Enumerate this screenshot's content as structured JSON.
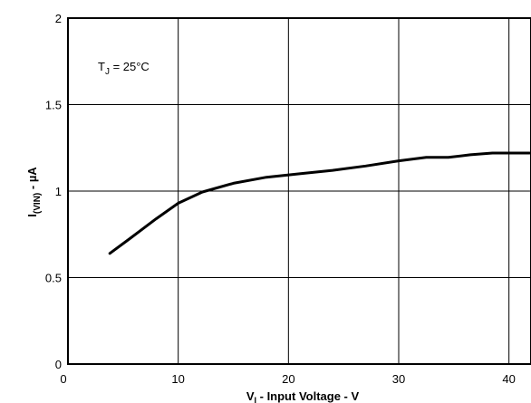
{
  "chart_data": {
    "type": "line",
    "xlabel": "V₁ - Input Voltage - V",
    "ylabel": "I(VIN) - µA",
    "xlim": [
      0,
      42
    ],
    "ylim": [
      0,
      2
    ],
    "x_ticks": [
      0,
      10,
      20,
      30,
      40
    ],
    "y_ticks": [
      0,
      0.5,
      1,
      1.5,
      2
    ],
    "x_tick_labels": [
      "0",
      "10",
      "20",
      "30",
      "40"
    ],
    "y_tick_labels": [
      "0",
      "0.5",
      "1",
      "1.5",
      "2"
    ],
    "grid": true,
    "annotation": "TJ = 25°C",
    "series": [
      {
        "x": [
          3.8,
          5.5,
          8,
          10,
          12.2,
          15,
          18,
          21,
          24,
          27,
          30,
          32.5,
          34.5,
          36.5,
          38.5,
          40.5,
          42
        ],
        "y": [
          0.64,
          0.72,
          0.84,
          0.93,
          0.995,
          1.045,
          1.08,
          1.1,
          1.12,
          1.145,
          1.175,
          1.195,
          1.195,
          1.21,
          1.22,
          1.22,
          1.22
        ]
      }
    ]
  },
  "text": {
    "xlabel_main": "V",
    "xlabel_sub": "I",
    "xlabel_rest": " - Input Voltage - V",
    "ylabel_main": "I",
    "ylabel_sub": "(VIN)",
    "ylabel_rest": " - µA",
    "annot_main": "T",
    "annot_sub": "J",
    "annot_rest": " = 25°C"
  }
}
